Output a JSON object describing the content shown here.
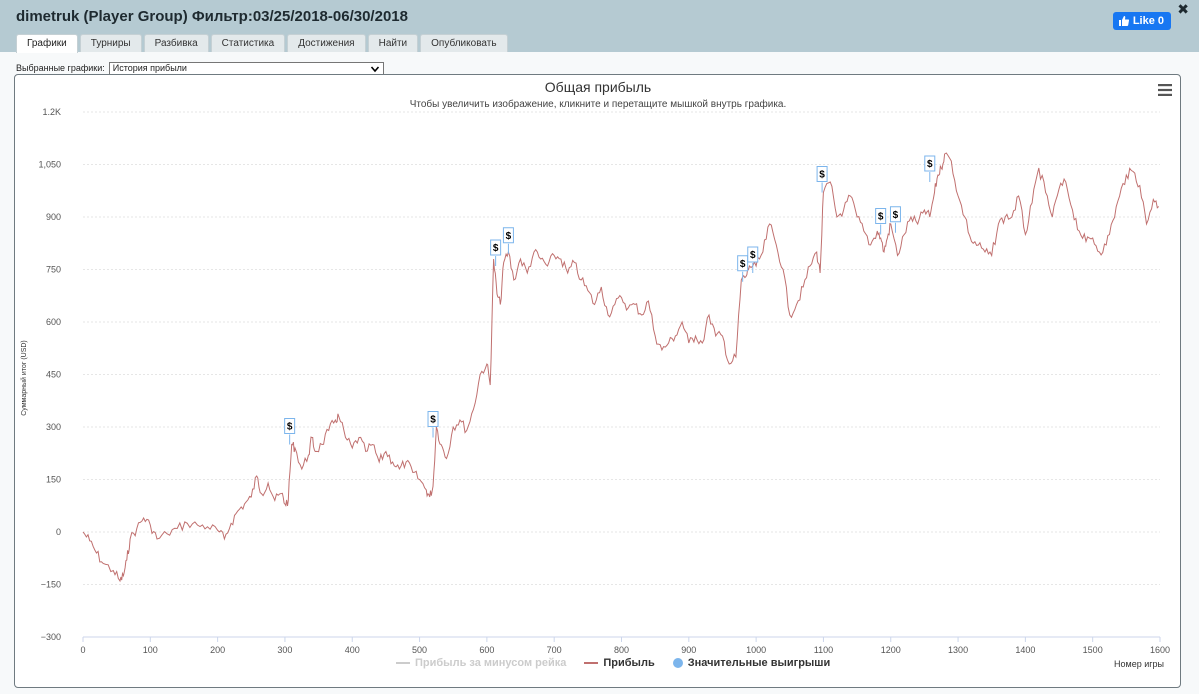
{
  "window": {
    "title": "dimetruk (Player Group) Фильтр:03/25/2018-06/30/2018",
    "close_symbol": "✖",
    "fb_like_label": "Like 0"
  },
  "tabs": [
    {
      "label": "Графики",
      "active": true
    },
    {
      "label": "Турниры",
      "active": false
    },
    {
      "label": "Разбивка",
      "active": false
    },
    {
      "label": "Статистика",
      "active": false
    },
    {
      "label": "Достижения",
      "active": false
    },
    {
      "label": "Найти",
      "active": false
    },
    {
      "label": "Опубликовать",
      "active": false
    }
  ],
  "selector": {
    "label": "Выбранные графики:",
    "selected": "История прибыли"
  },
  "colors": {
    "profit_line": "#c0706f",
    "rake_line": "#cccccc",
    "big_wins": "#7cb5ec",
    "title": "#333333",
    "grid": "#e6e6e6"
  },
  "chart_data": {
    "type": "line",
    "title": "Общая прибыль",
    "subtitle": "Чтобы увеличить изображение, кликните и перетащите мышкой внутрь графика.",
    "xlabel": "Номер игры",
    "ylabel": "Суммарный итог (USD)",
    "xlim": [
      0,
      1600
    ],
    "ylim": [
      -300,
      1200
    ],
    "x_ticks": [
      0,
      100,
      200,
      300,
      400,
      500,
      600,
      700,
      800,
      900,
      1000,
      1100,
      1200,
      1300,
      1400,
      1500,
      1600
    ],
    "y_ticks": [
      {
        "value": 1200,
        "label": "1.2K"
      },
      {
        "value": 1050,
        "label": "1,050"
      },
      {
        "value": 900,
        "label": "900"
      },
      {
        "value": 750,
        "label": "750"
      },
      {
        "value": 600,
        "label": "600"
      },
      {
        "value": 450,
        "label": "450"
      },
      {
        "value": 300,
        "label": "300"
      },
      {
        "value": 150,
        "label": "150"
      },
      {
        "value": 0,
        "label": "0"
      },
      {
        "value": -150,
        "label": "−150"
      },
      {
        "value": -300,
        "label": "−300"
      }
    ],
    "legend": [
      {
        "name": "Прибыль за минусом рейка",
        "visible": false
      },
      {
        "name": "Прибыль",
        "visible": true
      },
      {
        "name": "Значительные выигрыши",
        "visible": true
      }
    ],
    "series": [
      {
        "name": "Прибыль",
        "x": [
          0,
          10,
          20,
          30,
          45,
          55,
          60,
          65,
          70,
          80,
          90,
          100,
          110,
          125,
          140,
          155,
          170,
          185,
          200,
          210,
          220,
          230,
          240,
          250,
          258,
          265,
          275,
          285,
          295,
          300,
          305,
          310,
          315,
          325,
          335,
          340,
          345,
          355,
          365,
          375,
          380,
          390,
          400,
          410,
          420,
          430,
          440,
          450,
          460,
          470,
          480,
          490,
          500,
          510,
          515,
          520,
          525,
          532,
          540,
          550,
          560,
          570,
          580,
          590,
          600,
          605,
          610,
          615,
          620,
          625,
          632,
          640,
          650,
          660,
          670,
          680,
          690,
          700,
          710,
          720,
          730,
          740,
          750,
          760,
          770,
          780,
          790,
          800,
          810,
          820,
          830,
          840,
          850,
          860,
          870,
          880,
          890,
          900,
          910,
          920,
          930,
          940,
          950,
          960,
          970,
          978,
          985,
          990,
          1000,
          1010,
          1020,
          1030,
          1040,
          1050,
          1060,
          1070,
          1080,
          1090,
          1095,
          1100,
          1110,
          1120,
          1130,
          1140,
          1150,
          1160,
          1170,
          1180,
          1185,
          1190,
          1195,
          1200,
          1210,
          1220,
          1230,
          1240,
          1250,
          1258,
          1265,
          1270,
          1275,
          1280,
          1290,
          1300,
          1310,
          1320,
          1330,
          1340,
          1350,
          1360,
          1370,
          1380,
          1390,
          1400,
          1410,
          1420,
          1430,
          1440,
          1450,
          1460,
          1470,
          1480,
          1490,
          1500,
          1510,
          1520,
          1530,
          1540,
          1550,
          1560,
          1570,
          1580,
          1590,
          1598
        ],
        "values": [
          0,
          -25,
          -60,
          -90,
          -110,
          -140,
          -125,
          -80,
          -20,
          10,
          40,
          20,
          -20,
          -5,
          10,
          25,
          20,
          15,
          5,
          -20,
          25,
          60,
          80,
          100,
          160,
          110,
          140,
          90,
          110,
          80,
          90,
          250,
          240,
          180,
          220,
          270,
          230,
          250,
          290,
          320,
          330,
          270,
          240,
          270,
          230,
          250,
          200,
          230,
          200,
          180,
          200,
          170,
          150,
          120,
          100,
          130,
          300,
          250,
          210,
          300,
          320,
          290,
          350,
          450,
          480,
          420,
          780,
          680,
          650,
          770,
          800,
          720,
          780,
          740,
          800,
          780,
          760,
          790,
          780,
          740,
          770,
          720,
          690,
          650,
          700,
          620,
          650,
          670,
          640,
          650,
          620,
          660,
          560,
          520,
          540,
          560,
          600,
          540,
          560,
          540,
          620,
          560,
          560,
          480,
          500,
          720,
          730,
          760,
          760,
          800,
          880,
          820,
          750,
          620,
          650,
          700,
          760,
          800,
          740,
          970,
          1000,
          900,
          920,
          960,
          900,
          860,
          820,
          860,
          840,
          800,
          840,
          880,
          790,
          850,
          900,
          880,
          920,
          900,
          970,
          1020,
          1040,
          1080,
          1060,
          960,
          900,
          830,
          820,
          800,
          790,
          880,
          900,
          900,
          960,
          850,
          940,
          1040,
          970,
          900,
          980,
          1000,
          920,
          860,
          830,
          840,
          800,
          820,
          890,
          960,
          1020,
          1030,
          990,
          880,
          950,
          930
        ]
      }
    ],
    "big_wins": [
      {
        "x": 307,
        "y": 250,
        "label": "$"
      },
      {
        "x": 520,
        "y": 270,
        "label": "$"
      },
      {
        "x": 613,
        "y": 760,
        "label": "$"
      },
      {
        "x": 632,
        "y": 795,
        "label": "$"
      },
      {
        "x": 980,
        "y": 715,
        "label": "$"
      },
      {
        "x": 995,
        "y": 740,
        "label": "$"
      },
      {
        "x": 1098,
        "y": 970,
        "label": "$"
      },
      {
        "x": 1185,
        "y": 850,
        "label": "$"
      },
      {
        "x": 1207,
        "y": 855,
        "label": "$"
      },
      {
        "x": 1258,
        "y": 1000,
        "label": "$"
      }
    ]
  }
}
